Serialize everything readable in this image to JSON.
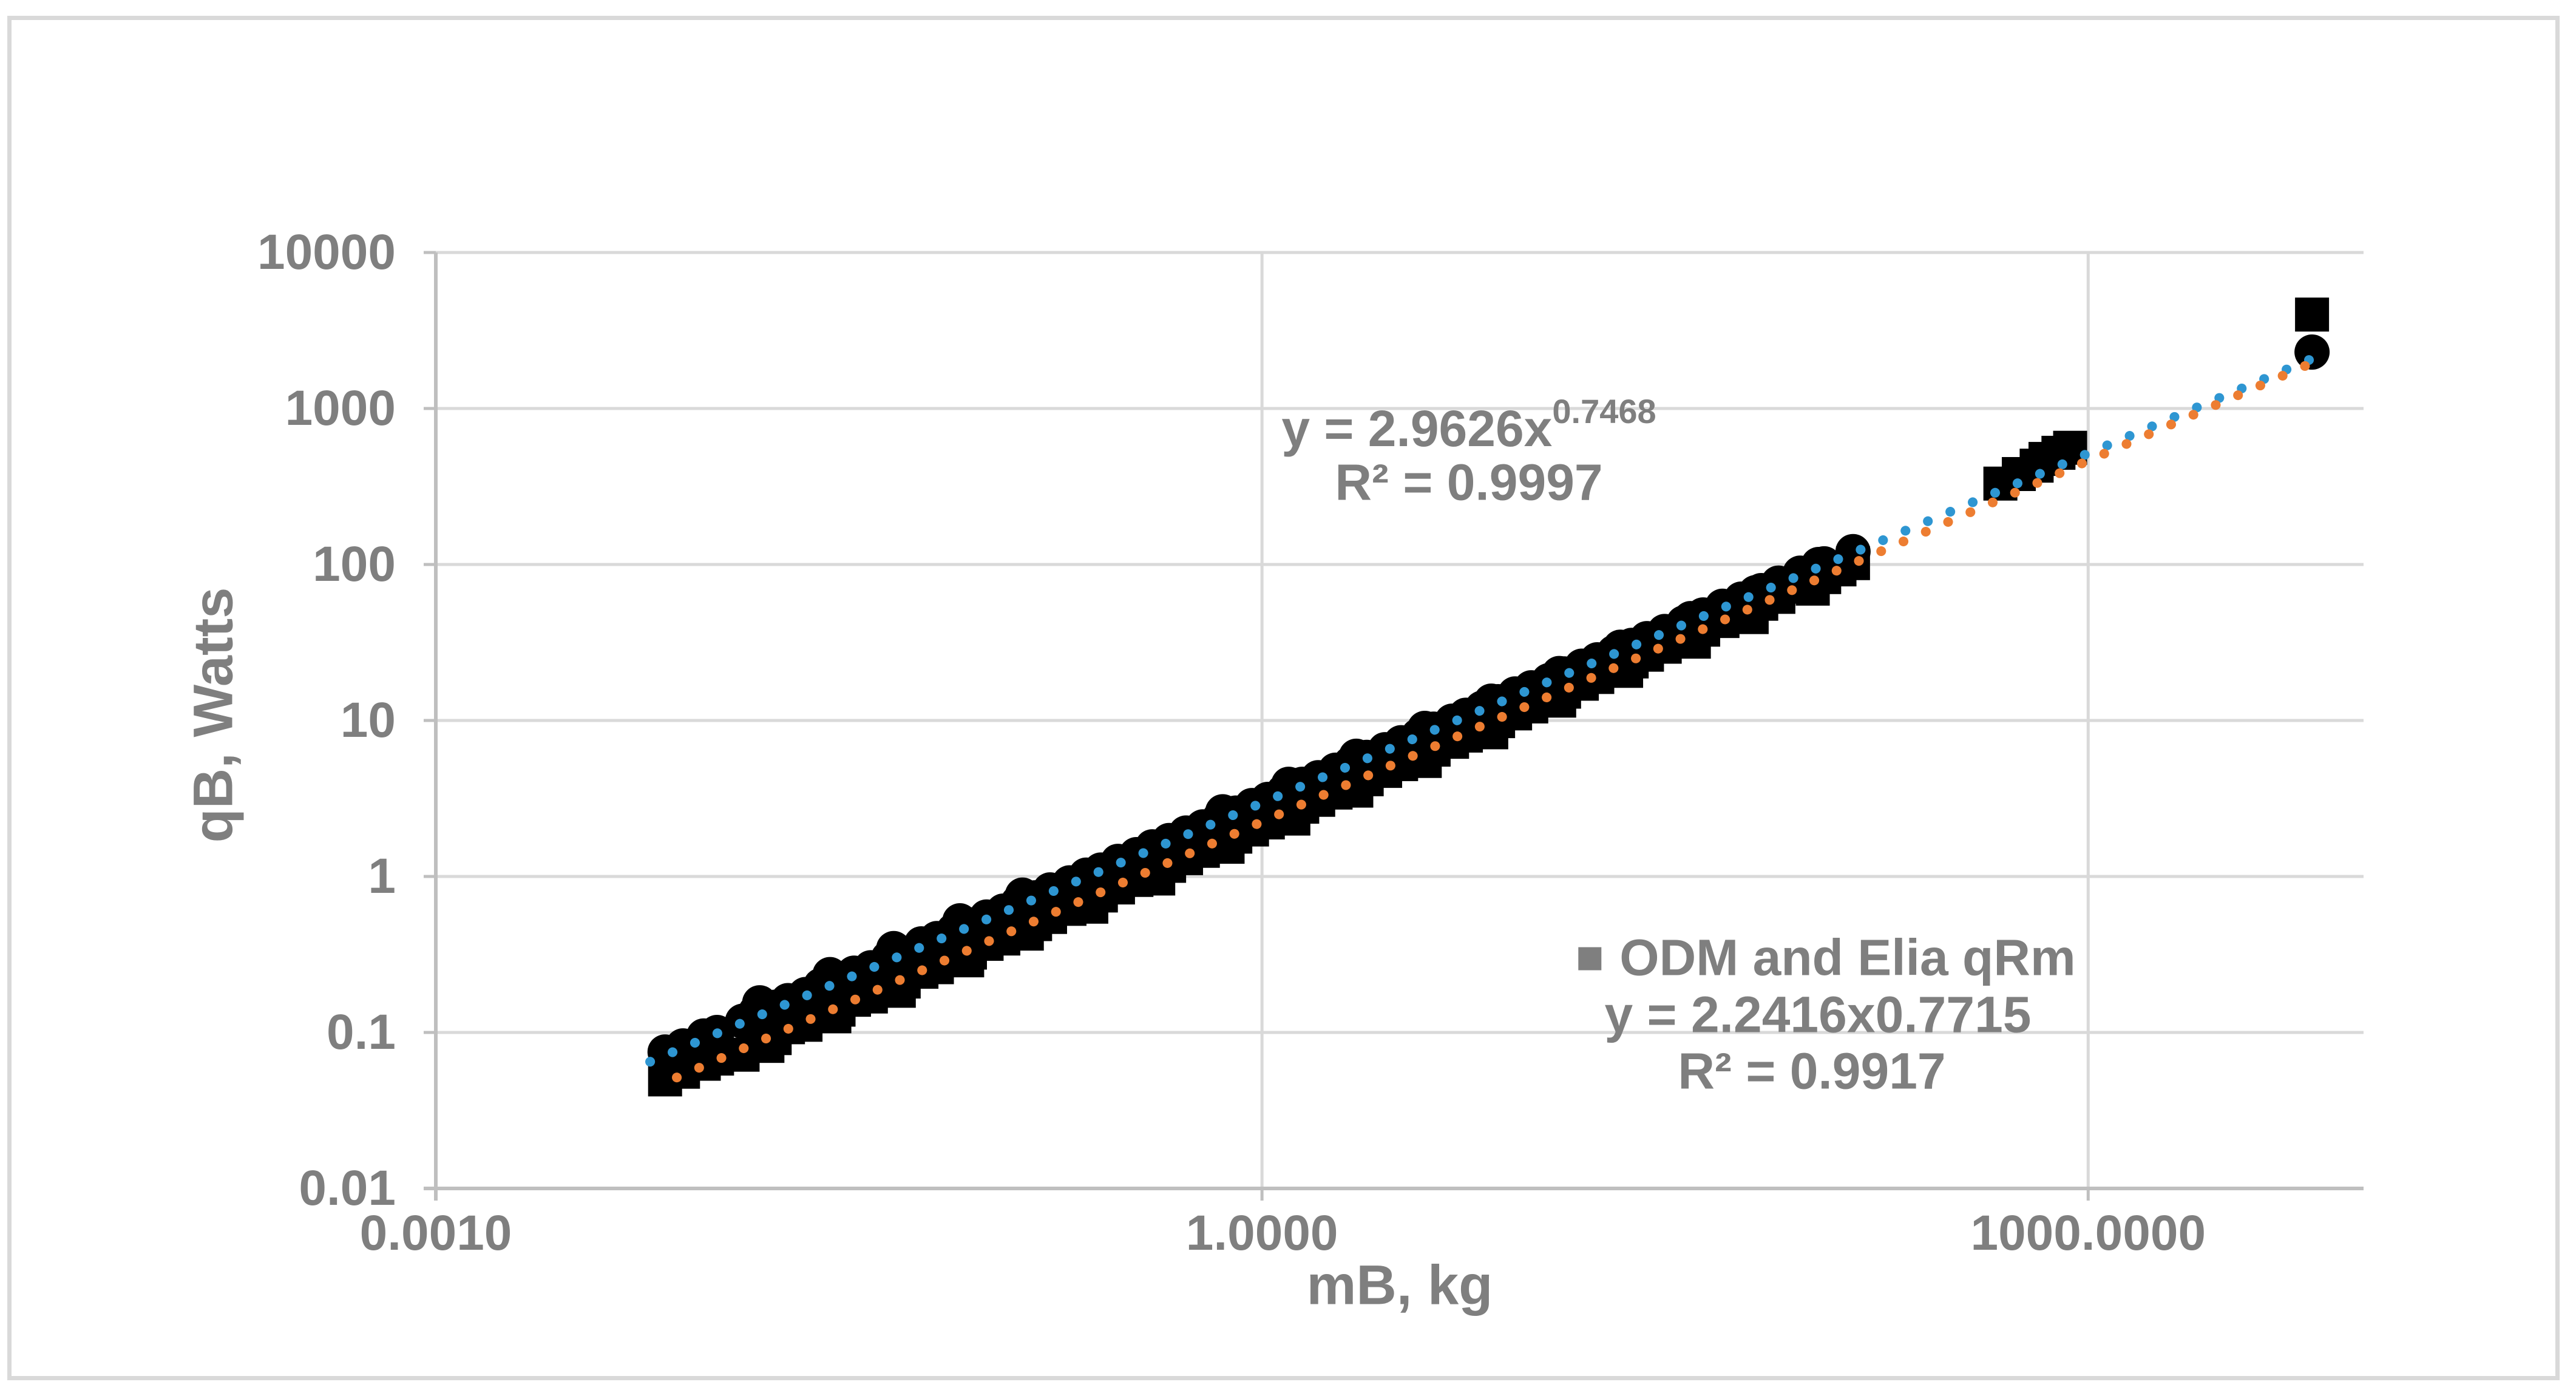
{
  "chart": {
    "y_axis_title": "qB, Watts",
    "x_axis_title": "mB, kg",
    "trend_annotation": {
      "eq_base": "y = 2.9626x",
      "eq_exponent": "0.7468",
      "r2_line": "R² = 0.9997"
    },
    "legend": {
      "series_label": "ODM and Elia qRm",
      "eq_line": "y = 2.2416x0.7715",
      "r2_line": "R² = 0.9917"
    },
    "colors": {
      "text_gray": "#7f7f7f",
      "gridline": "#d9d9d9",
      "axis_line": "#bfbfbf",
      "marker_black": "#000000",
      "trendline_blue": "#2e96d2",
      "trendline_orange": "#ed7d31",
      "legend_marker_gray": "#7f7f7f",
      "border_gray": "#d9d9d9"
    }
  },
  "chart_data": {
    "type": "scatter",
    "x_scale": "log",
    "y_scale": "log",
    "xlim": [
      0.001,
      10000
    ],
    "ylim": [
      0.01,
      10000
    ],
    "xlabel": "mB, kg",
    "ylabel": "qB, Watts",
    "grid": true,
    "x_ticks": [
      {
        "value": 0.001,
        "label": "0.0010"
      },
      {
        "value": 1,
        "label": "1.0000"
      },
      {
        "value": 1000,
        "label": "1000.0000"
      }
    ],
    "y_ticks": [
      {
        "value": 10000,
        "label": "10000"
      },
      {
        "value": 1000,
        "label": "1000"
      },
      {
        "value": 100,
        "label": "100"
      },
      {
        "value": 10,
        "label": "10"
      },
      {
        "value": 1,
        "label": "1"
      },
      {
        "value": 0.1,
        "label": "0.1"
      },
      {
        "value": 0.01,
        "label": "0.01"
      }
    ],
    "series": [
      {
        "name": "ODM and Elia qRm",
        "marker": "square",
        "color": "#000000",
        "points": [
          [
            0.0068,
            0.05
          ],
          [
            0.0079,
            0.056
          ],
          [
            0.0094,
            0.063
          ],
          [
            0.0105,
            0.068
          ],
          [
            0.013,
            0.072
          ],
          [
            0.0145,
            0.088
          ],
          [
            0.016,
            0.082
          ],
          [
            0.017,
            0.092
          ],
          [
            0.019,
            0.108
          ],
          [
            0.022,
            0.112
          ],
          [
            0.025,
            0.132
          ],
          [
            0.028,
            0.127
          ],
          [
            0.029,
            0.14
          ],
          [
            0.033,
            0.162
          ],
          [
            0.038,
            0.17
          ],
          [
            0.044,
            0.2
          ],
          [
            0.048,
            0.185
          ],
          [
            0.05,
            0.212
          ],
          [
            0.058,
            0.245
          ],
          [
            0.066,
            0.262
          ],
          [
            0.076,
            0.3
          ],
          [
            0.085,
            0.29
          ],
          [
            0.087,
            0.325
          ],
          [
            0.1,
            0.37
          ],
          [
            0.115,
            0.4
          ],
          [
            0.13,
            0.45
          ],
          [
            0.14,
            0.43
          ],
          [
            0.15,
            0.495
          ],
          [
            0.17,
            0.55
          ],
          [
            0.2,
            0.62
          ],
          [
            0.23,
            0.69
          ],
          [
            0.24,
            0.64
          ],
          [
            0.26,
            0.755
          ],
          [
            0.3,
            0.85
          ],
          [
            0.35,
            0.95
          ],
          [
            0.4,
            1.06
          ],
          [
            0.42,
            0.97
          ],
          [
            0.46,
            1.17
          ],
          [
            0.53,
            1.31
          ],
          [
            0.61,
            1.46
          ],
          [
            0.7,
            1.62
          ],
          [
            0.75,
            1.55
          ],
          [
            0.8,
            1.8
          ],
          [
            0.92,
            2.0
          ],
          [
            1.05,
            2.22
          ],
          [
            1.2,
            2.47
          ],
          [
            1.3,
            2.35
          ],
          [
            1.4,
            2.8
          ],
          [
            1.6,
            3.1
          ],
          [
            1.85,
            3.45
          ],
          [
            2.1,
            3.8
          ],
          [
            2.2,
            3.55
          ],
          [
            2.4,
            4.2
          ],
          [
            2.8,
            4.75
          ],
          [
            3.2,
            5.25
          ],
          [
            3.7,
            5.9
          ],
          [
            3.9,
            5.5
          ],
          [
            4.2,
            6.5
          ],
          [
            4.9,
            7.3
          ],
          [
            5.5,
            8.0
          ],
          [
            6.3,
            8.9
          ],
          [
            6.8,
            8.4
          ],
          [
            7.2,
            9.9
          ],
          [
            8.3,
            11.1
          ],
          [
            9.5,
            12.3
          ],
          [
            11,
            13.8
          ],
          [
            12,
            13.4
          ],
          [
            12.5,
            15.3
          ],
          [
            14.5,
            17.2
          ],
          [
            16.5,
            19.0
          ],
          [
            19,
            21.3
          ],
          [
            21,
            20.8
          ],
          [
            22,
            23.9
          ],
          [
            25,
            26.4
          ],
          [
            29,
            29.7
          ],
          [
            34,
            33.7
          ],
          [
            37,
            32
          ],
          [
            40,
            38.2
          ],
          [
            47,
            43.4
          ],
          [
            55,
            49
          ],
          [
            60,
            46
          ],
          [
            65,
            56
          ],
          [
            75,
            62
          ],
          [
            90,
            72
          ],
          [
            100,
            70
          ],
          [
            110,
            83
          ],
          [
            125,
            93
          ],
          [
            140,
            102
          ],
          [
            480,
            330
          ],
          [
            560,
            380
          ],
          [
            650,
            430
          ],
          [
            700,
            475
          ],
          [
            780,
            520
          ],
          [
            860,
            560
          ],
          [
            6500,
            4000
          ]
        ]
      },
      {
        "name": "unlabeled circles",
        "marker": "circle",
        "color": "#000000",
        "points": [
          [
            0.0068,
            0.075
          ],
          [
            0.0079,
            0.082
          ],
          [
            0.0094,
            0.095
          ],
          [
            0.0105,
            0.1
          ],
          [
            0.013,
            0.118
          ],
          [
            0.0145,
            0.135
          ],
          [
            0.015,
            0.155
          ],
          [
            0.017,
            0.145
          ],
          [
            0.019,
            0.16
          ],
          [
            0.022,
            0.175
          ],
          [
            0.025,
            0.2
          ],
          [
            0.027,
            0.235
          ],
          [
            0.029,
            0.215
          ],
          [
            0.033,
            0.24
          ],
          [
            0.038,
            0.26
          ],
          [
            0.044,
            0.3
          ],
          [
            0.046,
            0.345
          ],
          [
            0.05,
            0.32
          ],
          [
            0.058,
            0.37
          ],
          [
            0.066,
            0.4
          ],
          [
            0.076,
            0.45
          ],
          [
            0.08,
            0.52
          ],
          [
            0.087,
            0.49
          ],
          [
            0.1,
            0.55
          ],
          [
            0.115,
            0.6
          ],
          [
            0.13,
            0.68
          ],
          [
            0.135,
            0.76
          ],
          [
            0.15,
            0.73
          ],
          [
            0.17,
            0.82
          ],
          [
            0.2,
            0.91
          ],
          [
            0.23,
            1.02
          ],
          [
            0.26,
            1.1
          ],
          [
            0.3,
            1.25
          ],
          [
            0.35,
            1.38
          ],
          [
            0.4,
            1.55
          ],
          [
            0.46,
            1.7
          ],
          [
            0.53,
            1.9
          ],
          [
            0.61,
            2.08
          ],
          [
            0.7,
            2.35
          ],
          [
            0.72,
            2.6
          ],
          [
            0.8,
            2.55
          ],
          [
            0.92,
            2.85
          ],
          [
            1.05,
            3.12
          ],
          [
            1.2,
            3.5
          ],
          [
            1.25,
            3.9
          ],
          [
            1.4,
            3.9
          ],
          [
            1.6,
            4.3
          ],
          [
            1.85,
            4.8
          ],
          [
            2.1,
            5.3
          ],
          [
            2.2,
            5.9
          ],
          [
            2.4,
            5.8
          ],
          [
            2.8,
            6.5
          ],
          [
            3.2,
            7.2
          ],
          [
            3.7,
            8.0
          ],
          [
            3.9,
            8.9
          ],
          [
            4.2,
            8.8
          ],
          [
            4.9,
            9.9
          ],
          [
            5.5,
            10.8
          ],
          [
            6.3,
            12.0
          ],
          [
            6.8,
            13.3
          ],
          [
            7.2,
            13.2
          ],
          [
            8.3,
            14.8
          ],
          [
            9.5,
            16.2
          ],
          [
            11,
            18.0
          ],
          [
            12,
            20
          ],
          [
            12.5,
            19.9
          ],
          [
            14.5,
            22.3
          ],
          [
            16.5,
            24.5
          ],
          [
            19,
            27.3
          ],
          [
            20,
            29.5
          ],
          [
            22,
            30.3
          ],
          [
            25,
            33.5
          ],
          [
            29,
            37.2
          ],
          [
            34,
            42.2
          ],
          [
            36,
            45
          ],
          [
            40,
            47.5
          ],
          [
            47,
            54
          ],
          [
            55,
            60
          ],
          [
            62,
            66
          ],
          [
            65,
            68
          ],
          [
            75,
            76
          ],
          [
            90,
            88
          ],
          [
            105,
            100
          ],
          [
            110,
            101
          ],
          [
            140,
            121
          ],
          [
            6500,
            2300
          ]
        ]
      }
    ],
    "trendlines": [
      {
        "label": "y = 2.9626x^0.7468",
        "r2": 0.9997,
        "a": 2.9626,
        "b": 0.7468,
        "color": "#2e96d2",
        "style": "dotted",
        "x_start": 0.006,
        "x_end": 6560
      },
      {
        "label": "y = 2.2416x^0.7715",
        "r2": 0.9917,
        "a": 2.2416,
        "b": 0.7715,
        "color": "#ed7d31",
        "style": "dotted",
        "x_start": 0.0075,
        "x_end": 6560
      }
    ]
  }
}
